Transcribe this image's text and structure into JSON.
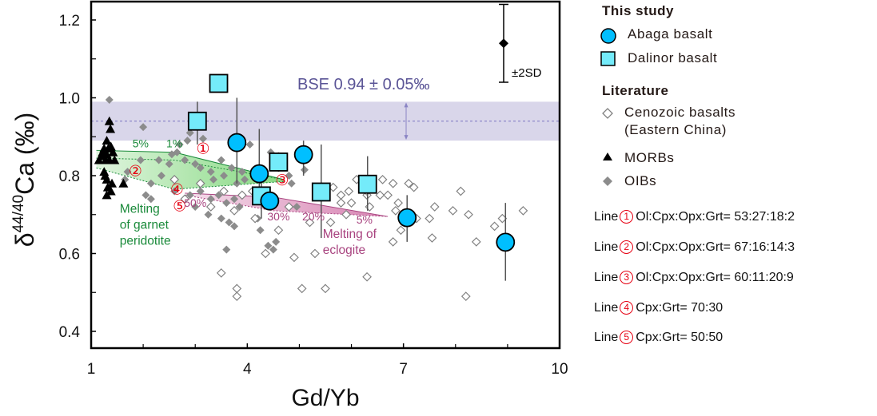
{
  "chart_data": {
    "type": "scatter",
    "title": "",
    "xlabel": "Gd/Yb",
    "ylabel_prefix": "δ",
    "ylabel_sup": "44/40",
    "ylabel_main": "Ca (‰)",
    "xlim": [
      1,
      10
    ],
    "ylim": [
      0.36,
      1.25
    ],
    "xticks": [
      1,
      4,
      7,
      10
    ],
    "xtick_labels": [
      "1",
      "4",
      "7",
      "10"
    ],
    "x_minor_ticks": [
      2,
      3,
      5,
      6,
      8,
      9
    ],
    "yticks": [
      0.4,
      0.6,
      0.8,
      1.0,
      1.2
    ],
    "ytick_labels": [
      "0.4",
      "0.6",
      "0.8",
      "1.0",
      "1.2"
    ],
    "y_minor_ticks": [
      0.5,
      0.7,
      0.9,
      1.1
    ],
    "grid": false,
    "legend_position": "right-outside",
    "bse_band": {
      "label": "BSE 0.94 ± 0.05‰",
      "center": 0.94,
      "half_width": 0.05,
      "color": "#d9d6ea"
    },
    "sd_marker": {
      "label": "±2SD",
      "x": 9.0,
      "y": 1.14,
      "err": 0.1
    },
    "series": [
      {
        "name": "Abaga basalt",
        "group": "This study",
        "marker": "circle",
        "color": "#00bfff",
        "points": [
          {
            "x": 3.8,
            "y": 0.885,
            "err_lo": 0.78,
            "err_hi": 1.0
          },
          {
            "x": 4.23,
            "y": 0.805,
            "err_lo": 0.73,
            "err_hi": 0.92
          },
          {
            "x": 5.08,
            "y": 0.854,
            "err_lo": 0.8,
            "err_hi": 0.89
          },
          {
            "x": 4.43,
            "y": 0.735,
            "err_lo": 0.72,
            "err_hi": 0.75
          },
          {
            "x": 7.07,
            "y": 0.692,
            "err_lo": 0.63,
            "err_hi": 0.75
          },
          {
            "x": 8.96,
            "y": 0.629,
            "err_lo": 0.53,
            "err_hi": 0.73
          }
        ]
      },
      {
        "name": "Dalinor basalt",
        "group": "This study",
        "marker": "square",
        "color": "#74ebfa",
        "points": [
          {
            "x": 3.45,
            "y": 1.037,
            "err_lo": 1.037,
            "err_hi": 1.037
          },
          {
            "x": 3.04,
            "y": 0.94,
            "err_lo": 0.88,
            "err_hi": 0.99
          },
          {
            "x": 4.6,
            "y": 0.835,
            "err_lo": 0.81,
            "err_hi": 0.86
          },
          {
            "x": 4.27,
            "y": 0.748,
            "err_lo": 0.69,
            "err_hi": 0.8
          },
          {
            "x": 5.42,
            "y": 0.758,
            "err_lo": 0.64,
            "err_hi": 0.88
          },
          {
            "x": 6.31,
            "y": 0.778,
            "err_lo": 0.71,
            "err_hi": 0.85
          }
        ]
      },
      {
        "name": "Cenozoic basalts (Eastern China)",
        "group": "Literature",
        "marker": "diamond-open",
        "color": "#808080",
        "points": [
          {
            "x": 2.6,
            "y": 0.79
          },
          {
            "x": 2.8,
            "y": 0.74
          },
          {
            "x": 3.1,
            "y": 0.78
          },
          {
            "x": 3.3,
            "y": 0.72
          },
          {
            "x": 3.75,
            "y": 0.71
          },
          {
            "x": 3.5,
            "y": 0.55
          },
          {
            "x": 3.8,
            "y": 0.51
          },
          {
            "x": 3.8,
            "y": 0.49
          },
          {
            "x": 3.55,
            "y": 0.76
          },
          {
            "x": 3.9,
            "y": 0.75
          },
          {
            "x": 4.1,
            "y": 0.76
          },
          {
            "x": 4.35,
            "y": 0.6
          },
          {
            "x": 4.6,
            "y": 0.66
          },
          {
            "x": 4.9,
            "y": 0.59
          },
          {
            "x": 5.05,
            "y": 0.51
          },
          {
            "x": 5.2,
            "y": 0.68
          },
          {
            "x": 5.5,
            "y": 0.51
          },
          {
            "x": 5.6,
            "y": 0.68
          },
          {
            "x": 5.8,
            "y": 0.75
          },
          {
            "x": 5.65,
            "y": 0.77
          },
          {
            "x": 5.8,
            "y": 0.73
          },
          {
            "x": 5.95,
            "y": 0.76
          },
          {
            "x": 6.0,
            "y": 0.73
          },
          {
            "x": 5.9,
            "y": 0.7
          },
          {
            "x": 6.3,
            "y": 0.75
          },
          {
            "x": 6.35,
            "y": 0.72
          },
          {
            "x": 6.1,
            "y": 0.79
          },
          {
            "x": 6.3,
            "y": 0.76
          },
          {
            "x": 6.6,
            "y": 0.79
          },
          {
            "x": 6.55,
            "y": 0.75
          },
          {
            "x": 6.8,
            "y": 0.78
          },
          {
            "x": 6.7,
            "y": 0.75
          },
          {
            "x": 6.9,
            "y": 0.73
          },
          {
            "x": 6.85,
            "y": 0.71
          },
          {
            "x": 6.95,
            "y": 0.66
          },
          {
            "x": 7.1,
            "y": 0.78
          },
          {
            "x": 7.2,
            "y": 0.77
          },
          {
            "x": 7.25,
            "y": 0.69
          },
          {
            "x": 7.6,
            "y": 0.72
          },
          {
            "x": 7.5,
            "y": 0.69
          },
          {
            "x": 6.8,
            "y": 0.63
          },
          {
            "x": 6.3,
            "y": 0.54
          },
          {
            "x": 5.3,
            "y": 0.6
          },
          {
            "x": 7.95,
            "y": 0.71
          },
          {
            "x": 8.1,
            "y": 0.76
          },
          {
            "x": 8.25,
            "y": 0.7
          },
          {
            "x": 8.4,
            "y": 0.63
          },
          {
            "x": 8.75,
            "y": 0.67
          },
          {
            "x": 8.9,
            "y": 0.69
          },
          {
            "x": 9.3,
            "y": 0.71
          },
          {
            "x": 8.2,
            "y": 0.49
          },
          {
            "x": 7.55,
            "y": 0.64
          },
          {
            "x": 4.8,
            "y": 0.72
          },
          {
            "x": 4.15,
            "y": 0.69
          }
        ]
      },
      {
        "name": "MORBs",
        "group": "Literature",
        "marker": "triangle",
        "color": "#000000",
        "points": [
          {
            "x": 1.35,
            "y": 0.94
          },
          {
            "x": 1.37,
            "y": 0.92
          },
          {
            "x": 1.3,
            "y": 0.89
          },
          {
            "x": 1.25,
            "y": 0.87
          },
          {
            "x": 1.38,
            "y": 0.875
          },
          {
            "x": 1.2,
            "y": 0.85
          },
          {
            "x": 1.3,
            "y": 0.855
          },
          {
            "x": 1.42,
            "y": 0.86
          },
          {
            "x": 1.28,
            "y": 0.84
          },
          {
            "x": 1.15,
            "y": 0.84
          },
          {
            "x": 1.35,
            "y": 0.84
          },
          {
            "x": 1.45,
            "y": 0.84
          },
          {
            "x": 1.22,
            "y": 0.86
          },
          {
            "x": 1.33,
            "y": 0.87
          },
          {
            "x": 1.25,
            "y": 0.81
          },
          {
            "x": 1.3,
            "y": 0.79
          },
          {
            "x": 1.4,
            "y": 0.78
          },
          {
            "x": 1.32,
            "y": 0.77
          },
          {
            "x": 1.38,
            "y": 0.76
          },
          {
            "x": 1.3,
            "y": 0.75
          },
          {
            "x": 1.62,
            "y": 0.78
          },
          {
            "x": 1.27,
            "y": 0.8
          }
        ]
      },
      {
        "name": "OIBs",
        "group": "Literature",
        "marker": "diamond-filled",
        "color": "#8c8c8c",
        "points": [
          {
            "x": 1.35,
            "y": 0.995
          },
          {
            "x": 2.0,
            "y": 0.925
          },
          {
            "x": 2.9,
            "y": 0.91
          },
          {
            "x": 3.15,
            "y": 0.895
          },
          {
            "x": 2.85,
            "y": 0.89
          },
          {
            "x": 2.7,
            "y": 0.88
          },
          {
            "x": 2.55,
            "y": 0.855
          },
          {
            "x": 2.65,
            "y": 0.86
          },
          {
            "x": 2.3,
            "y": 0.84
          },
          {
            "x": 2.5,
            "y": 0.83
          },
          {
            "x": 1.95,
            "y": 0.84
          },
          {
            "x": 1.7,
            "y": 0.81
          },
          {
            "x": 1.65,
            "y": 0.79
          },
          {
            "x": 2.15,
            "y": 0.78
          },
          {
            "x": 2.35,
            "y": 0.8
          },
          {
            "x": 2.8,
            "y": 0.84
          },
          {
            "x": 3.0,
            "y": 0.83
          },
          {
            "x": 3.1,
            "y": 0.82
          },
          {
            "x": 3.3,
            "y": 0.81
          },
          {
            "x": 3.5,
            "y": 0.84
          },
          {
            "x": 3.7,
            "y": 0.82
          },
          {
            "x": 3.55,
            "y": 0.8
          },
          {
            "x": 3.35,
            "y": 0.79
          },
          {
            "x": 3.9,
            "y": 0.81
          },
          {
            "x": 4.05,
            "y": 0.88
          },
          {
            "x": 3.95,
            "y": 0.79
          },
          {
            "x": 3.8,
            "y": 0.78
          },
          {
            "x": 2.05,
            "y": 0.75
          },
          {
            "x": 2.15,
            "y": 0.74
          },
          {
            "x": 2.6,
            "y": 0.76
          },
          {
            "x": 2.9,
            "y": 0.75
          },
          {
            "x": 3.1,
            "y": 0.76
          },
          {
            "x": 3.3,
            "y": 0.74
          },
          {
            "x": 3.45,
            "y": 0.75
          },
          {
            "x": 3.6,
            "y": 0.73
          },
          {
            "x": 3.75,
            "y": 0.74
          },
          {
            "x": 3.85,
            "y": 0.72
          },
          {
            "x": 3.5,
            "y": 0.69
          },
          {
            "x": 3.65,
            "y": 0.68
          },
          {
            "x": 3.75,
            "y": 0.67
          },
          {
            "x": 3.6,
            "y": 0.61
          },
          {
            "x": 4.25,
            "y": 0.66
          },
          {
            "x": 4.4,
            "y": 0.62
          },
          {
            "x": 4.5,
            "y": 0.61
          },
          {
            "x": 4.55,
            "y": 0.63
          },
          {
            "x": 4.2,
            "y": 0.69
          },
          {
            "x": 4.8,
            "y": 0.8
          },
          {
            "x": 5.05,
            "y": 0.86
          },
          {
            "x": 5.1,
            "y": 0.815
          },
          {
            "x": 4.85,
            "y": 0.78
          },
          {
            "x": 4.95,
            "y": 0.72
          },
          {
            "x": 3.0,
            "y": 0.72
          },
          {
            "x": 3.25,
            "y": 0.7
          },
          {
            "x": 4.45,
            "y": 0.86
          }
        ]
      }
    ],
    "models": [
      {
        "name": "Melting of garnet peridotite",
        "color": "#1a8a3a",
        "fill": "#7fd67a",
        "labels": [
          "5%",
          "1%"
        ],
        "lines": [
          {
            "id": "1",
            "x": [
              1.1,
              2.6,
              4.7
            ],
            "y": [
              0.865,
              0.86,
              0.79
            ]
          },
          {
            "id": "2",
            "x": [
              1.1,
              2.6,
              4.7
            ],
            "y": [
              0.845,
              0.84,
              0.79
            ]
          },
          {
            "id": "3",
            "x": [
              1.1,
              2.6,
              4.7
            ],
            "y": [
              0.82,
              0.765,
              0.785
            ]
          }
        ]
      },
      {
        "name": "Melting of eclogite",
        "color": "#a8437f",
        "fill": "#d57cae",
        "labels": [
          "50%",
          "30%",
          "20%",
          "5%"
        ],
        "lines": [
          {
            "id": "4",
            "x": [
              2.8,
              4.5,
              6.7
            ],
            "y": [
              0.755,
              0.745,
              0.695
            ]
          },
          {
            "id": "5",
            "x": [
              2.8,
              4.5,
              6.7
            ],
            "y": [
              0.75,
              0.71,
              0.695
            ]
          }
        ]
      }
    ],
    "annotations": {
      "circled_labels": [
        {
          "id": "①",
          "x": 3.15,
          "y": 0.868
        },
        {
          "id": "②",
          "x": 1.85,
          "y": 0.81
        },
        {
          "id": "③",
          "x": 4.67,
          "y": 0.787
        },
        {
          "id": "④",
          "x": 2.65,
          "y": 0.763
        },
        {
          "id": "⑤",
          "x": 2.7,
          "y": 0.72
        }
      ],
      "pct_labels": [
        {
          "text": "5%",
          "x": 1.95,
          "y": 0.873,
          "color": "#1a8a3a"
        },
        {
          "text": "1%",
          "x": 2.6,
          "y": 0.873,
          "color": "#1a8a3a"
        },
        {
          "text": "50%",
          "x": 3.0,
          "y": 0.72,
          "color": "#a8437f"
        },
        {
          "text": "30%",
          "x": 4.6,
          "y": 0.685,
          "color": "#a8437f"
        },
        {
          "text": "20%",
          "x": 5.27,
          "y": 0.685,
          "color": "#a8437f"
        },
        {
          "text": "5%",
          "x": 6.25,
          "y": 0.677,
          "color": "#a8437f"
        }
      ],
      "model_text": [
        {
          "lines": [
            "Melting",
            "of garnet",
            "peridotite"
          ],
          "x": 1.55,
          "y": 0.705,
          "color": "#1a8a3a"
        },
        {
          "lines": [
            "Melting of",
            "eclogite"
          ],
          "x": 5.45,
          "y": 0.64,
          "color": "#a8437f"
        }
      ]
    }
  },
  "legend": {
    "this_study_heading": "This study",
    "abaga": "Abaga basalt",
    "dalinor": "Dalinor basalt",
    "literature_heading": "Literature",
    "cenozoic_line1": "Cenozoic basalts",
    "cenozoic_line2": "(Eastern China)",
    "morbs": "MORBs",
    "oibs": "OIBs"
  },
  "lines_legend": [
    {
      "prefix": "Line",
      "num": "1",
      "text": "Ol:Cpx:Opx:Grt= 53:27:18:2"
    },
    {
      "prefix": "Line",
      "num": "2",
      "text": "Ol:Cpx:Opx:Grt= 67:16:14:3"
    },
    {
      "prefix": "Line",
      "num": "3",
      "text": "Ol:Cpx:Opx:Grt= 60:11:20:9"
    },
    {
      "prefix": "Line",
      "num": "4",
      "text": "Cpx:Grt= 70:30"
    },
    {
      "prefix": "Line",
      "num": "5",
      "text": "Cpx:Grt= 50:50"
    }
  ]
}
